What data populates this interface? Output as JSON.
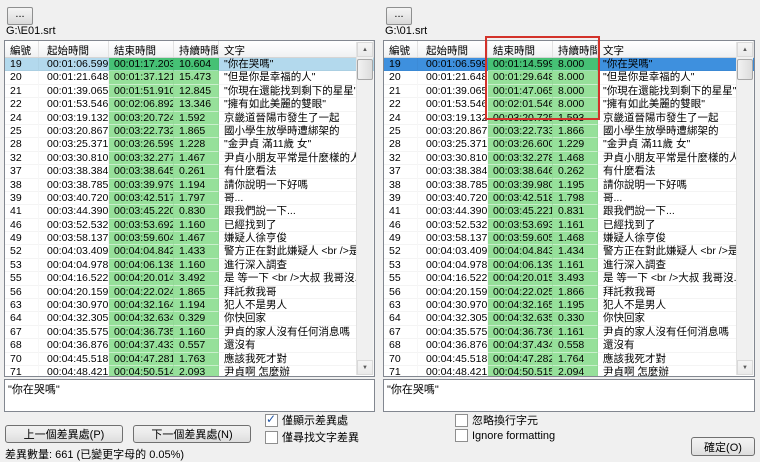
{
  "colors": {
    "green": "#96e09a",
    "green_selected": "#46c175",
    "selection_blue": "#3e90de",
    "selection_pale_blue": "#b3d9ed",
    "annotation_red": "#d3322a",
    "window_bg": "#f0f0f0"
  },
  "icons": {
    "check": "✓",
    "up_arrow": "▲",
    "down_arrow": "▼"
  },
  "left_panel": {
    "browse_label": "...",
    "file_path": "G:\\E01.srt",
    "preview_text": "\"你在哭嗎\"",
    "selected_index": 0,
    "columns": [
      "編號",
      "起始時間",
      "結束時間",
      "持續時間",
      "文字"
    ],
    "rows": [
      [
        "19",
        "00:01:06.599",
        "00:01:17.203",
        "10.604",
        "\"你在哭嗎\""
      ],
      [
        "20",
        "00:01:21.648",
        "00:01:37.121",
        "15.473",
        "\"但是你是幸福的人\""
      ],
      [
        "21",
        "00:01:39.065",
        "00:01:51.910",
        "12.845",
        "\"你現在還能找到剩下的星星\""
      ],
      [
        "22",
        "00:01:53.546",
        "00:02:06.892",
        "13.346",
        "\"擁有如此美麗的雙眼\""
      ],
      [
        "24",
        "00:03:19.132",
        "00:03:20.724",
        "1.592",
        "京畿道晉陽市發生了一起"
      ],
      [
        "25",
        "00:03:20.867",
        "00:03:22.732",
        "1.865",
        "國小學生放學時遭綁架的"
      ],
      [
        "28",
        "00:03:25.371",
        "00:03:26.599",
        "1.228",
        "\"金尹貞 滿11歲 女\""
      ],
      [
        "32",
        "00:03:30.810",
        "00:03:32.277",
        "1.467",
        "尹貞小朋友平常是什麼樣的人"
      ],
      [
        "37",
        "00:03:38.384",
        "00:03:38.645",
        "0.261",
        "有什麼看法"
      ],
      [
        "38",
        "00:03:38.785",
        "00:03:39.979",
        "1.194",
        "請你說明一下好嗎"
      ],
      [
        "39",
        "00:03:40.720",
        "00:03:42.517",
        "1.797",
        "哥..."
      ],
      [
        "41",
        "00:03:44.390",
        "00:03:45.220",
        "0.830",
        "跟我們說一下..."
      ],
      [
        "46",
        "00:03:52.532",
        "00:03:53.692",
        "1.160",
        "已經找到了"
      ],
      [
        "49",
        "00:03:58.137",
        "00:03:59.604",
        "1.467",
        "嫌疑人徐亨俊"
      ],
      [
        "52",
        "00:04:03.409",
        "00:04:04.842",
        "1.433",
        "警方正在對此嫌疑人 <br />是..."
      ],
      [
        "53",
        "00:04:04.978",
        "00:04:06.138",
        "1.160",
        "進行深入調查"
      ],
      [
        "55",
        "00:04:16.522",
        "00:04:20.014",
        "3.492",
        "是 等一下 <br />大叔 我哥沒..."
      ],
      [
        "56",
        "00:04:20.159",
        "00:04:22.024",
        "1.865",
        "拜託救我哥"
      ],
      [
        "63",
        "00:04:30.970",
        "00:04:32.164",
        "1.194",
        "犯人不是男人"
      ],
      [
        "64",
        "00:04:32.305",
        "00:04:32.634",
        "0.329",
        "你快回家"
      ],
      [
        "67",
        "00:04:35.575",
        "00:04:36.735",
        "1.160",
        "尹貞的家人沒有任何消息嗎"
      ],
      [
        "68",
        "00:04:36.876",
        "00:04:37.433",
        "0.557",
        "還沒有"
      ],
      [
        "70",
        "00:04:45.518",
        "00:04:47.281",
        "1.763",
        "應該我死才對"
      ],
      [
        "71",
        "00:04:48.421",
        "00:04:50.514",
        "2.093",
        "尹貞啊 怎麼辦"
      ]
    ]
  },
  "right_panel": {
    "browse_label": "...",
    "file_path": "G:\\01.srt",
    "preview_text": "\"你在哭嗎\"",
    "selected_index": 0,
    "columns": [
      "編號",
      "起始時間",
      "結束時間",
      "持續時間",
      "文字"
    ],
    "rows": [
      [
        "19",
        "00:01:06.599",
        "00:01:14.599",
        "8.000",
        "\"你在哭嗎\""
      ],
      [
        "20",
        "00:01:21.648",
        "00:01:29.648",
        "8.000",
        "\"但是你是幸福的人\""
      ],
      [
        "21",
        "00:01:39.065",
        "00:01:47.065",
        "8.000",
        "\"你現在還能找到剩下的星星\""
      ],
      [
        "22",
        "00:01:53.546",
        "00:02:01.546",
        "8.000",
        "\"擁有如此美麗的雙眼\""
      ],
      [
        "24",
        "00:03:19.132",
        "00:03:20.725",
        "1.593",
        "京畿道晉陽市發生了一起"
      ],
      [
        "25",
        "00:03:20.867",
        "00:03:22.733",
        "1.866",
        "國小學生放學時遭綁架的"
      ],
      [
        "28",
        "00:03:25.371",
        "00:03:26.600",
        "1.229",
        "\"金尹貞 滿11歲 女\""
      ],
      [
        "32",
        "00:03:30.810",
        "00:03:32.278",
        "1.468",
        "尹貞小朋友平常是什麼樣的人"
      ],
      [
        "37",
        "00:03:38.384",
        "00:03:38.646",
        "0.262",
        "有什麼看法"
      ],
      [
        "38",
        "00:03:38.785",
        "00:03:39.980",
        "1.195",
        "請你說明一下好嗎"
      ],
      [
        "39",
        "00:03:40.720",
        "00:03:42.518",
        "1.798",
        "哥..."
      ],
      [
        "41",
        "00:03:44.390",
        "00:03:45.221",
        "0.831",
        "跟我們說一下..."
      ],
      [
        "46",
        "00:03:52.532",
        "00:03:53.693",
        "1.161",
        "已經找到了"
      ],
      [
        "49",
        "00:03:58.137",
        "00:03:59.605",
        "1.468",
        "嫌疑人徐亨俊"
      ],
      [
        "52",
        "00:04:03.409",
        "00:04:04.843",
        "1.434",
        "警方正在對此嫌疑人 <br />是..."
      ],
      [
        "53",
        "00:04:04.978",
        "00:04:06.139",
        "1.161",
        "進行深入調查"
      ],
      [
        "55",
        "00:04:16.522",
        "00:04:20.015",
        "3.493",
        "是 等一下 <br />大叔 我哥沒..."
      ],
      [
        "56",
        "00:04:20.159",
        "00:04:22.025",
        "1.866",
        "拜託救我哥"
      ],
      [
        "63",
        "00:04:30.970",
        "00:04:32.165",
        "1.195",
        "犯人不是男人"
      ],
      [
        "64",
        "00:04:32.305",
        "00:04:32.635",
        "0.330",
        "你快回家"
      ],
      [
        "67",
        "00:04:35.575",
        "00:04:36.736",
        "1.161",
        "尹貞的家人沒有任何消息嗎"
      ],
      [
        "68",
        "00:04:36.876",
        "00:04:37.434",
        "0.558",
        "還沒有"
      ],
      [
        "70",
        "00:04:45.518",
        "00:04:47.282",
        "1.764",
        "應該我死才對"
      ],
      [
        "71",
        "00:04:48.421",
        "00:04:50.515",
        "2.094",
        "尹貞啊 怎麼辦"
      ]
    ]
  },
  "controls": {
    "prev_diff_button": "上一個差異處(P)",
    "next_diff_button": "下一個差異處(N)",
    "ok_button": "確定(O)",
    "status": "差異數量: 661 (已變更字母的 0.05%)",
    "checks": {
      "show_only_diff": {
        "label": "僅顯示差異處",
        "checked": true
      },
      "find_text_only": {
        "label": "僅尋找文字差異",
        "checked": false
      },
      "ignore_linebreak": {
        "label": "忽略換行字元",
        "checked": false
      },
      "ignore_formatting": {
        "label": "Ignore formatting",
        "checked": false
      }
    }
  }
}
